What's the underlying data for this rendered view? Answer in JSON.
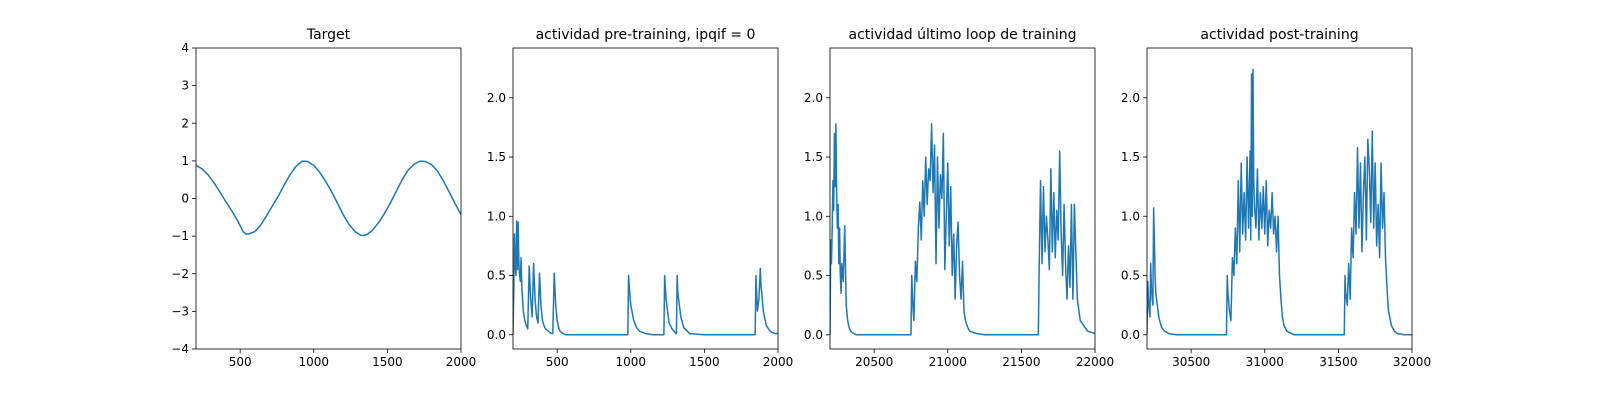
{
  "figure": {
    "line_color": "#1f77b4"
  },
  "chart_data": [
    {
      "type": "line",
      "title": "Target",
      "xlim": [
        200,
        2000
      ],
      "ylim": [
        -4,
        4
      ],
      "x_ticks": [
        500,
        1000,
        1500,
        2000
      ],
      "x_tick_labels": [
        "500",
        "1000",
        "1500",
        "2000"
      ],
      "y_ticks": [
        -4,
        -3,
        -2,
        -1,
        0,
        1,
        2,
        3,
        4
      ],
      "y_tick_labels": [
        "−4",
        "−3",
        "−2",
        "−1",
        "0",
        "1",
        "2",
        "3",
        "4"
      ],
      "grid": false,
      "series": [
        {
          "x": [
            200,
            240,
            280,
            320,
            360,
            400,
            440,
            480,
            520,
            540,
            560,
            600,
            640,
            680,
            720,
            760,
            800,
            840,
            880,
            920,
            940,
            960,
            1000,
            1040,
            1080,
            1120,
            1160,
            1200,
            1240,
            1280,
            1320,
            1340,
            1360,
            1400,
            1440,
            1480,
            1520,
            1560,
            1600,
            1640,
            1680,
            1720,
            1740,
            1760,
            1800,
            1840,
            1880,
            1920,
            1960,
            2000
          ],
          "y": [
            0.88,
            0.79,
            0.64,
            0.43,
            0.19,
            -0.07,
            -0.31,
            -0.57,
            -0.88,
            -0.95,
            -0.94,
            -0.88,
            -0.7,
            -0.46,
            -0.19,
            0.07,
            0.37,
            0.64,
            0.86,
            0.99,
            0.99,
            0.98,
            0.88,
            0.7,
            0.46,
            0.19,
            -0.12,
            -0.43,
            -0.69,
            -0.88,
            -0.98,
            -0.98,
            -0.96,
            -0.84,
            -0.64,
            -0.4,
            -0.12,
            0.19,
            0.5,
            0.75,
            0.91,
            0.99,
            0.99,
            0.98,
            0.9,
            0.73,
            0.47,
            0.17,
            -0.14,
            -0.43
          ]
        }
      ]
    },
    {
      "type": "line",
      "title": "actividad pre-training, ipqif = 0",
      "xlim": [
        200,
        2000
      ],
      "ylim": [
        -0.12,
        2.42
      ],
      "x_ticks": [
        500,
        1000,
        1500,
        2000
      ],
      "x_tick_labels": [
        "500",
        "1000",
        "1500",
        "2000"
      ],
      "y_ticks": [
        0,
        0.5,
        1.0,
        1.5,
        2.0
      ],
      "y_tick_labels": [
        "0.0",
        "0.5",
        "1.0",
        "1.5",
        "2.0"
      ],
      "grid": false,
      "series": [
        {
          "x": [
            200,
            205,
            210,
            215,
            220,
            225,
            230,
            235,
            240,
            245,
            250,
            255,
            260,
            265,
            270,
            280,
            290,
            300,
            310,
            320,
            330,
            340,
            350,
            360,
            370,
            380,
            390,
            400,
            410,
            420,
            430,
            440,
            450,
            460,
            470,
            480,
            490,
            500,
            510,
            520,
            540,
            560,
            600,
            700,
            800,
            900,
            980,
            985,
            990,
            1000,
            1020,
            1040,
            1060,
            1100,
            1150,
            1200,
            1225,
            1230,
            1240,
            1260,
            1280,
            1300,
            1310,
            1315,
            1320,
            1340,
            1360,
            1400,
            1500,
            1600,
            1700,
            1800,
            1845,
            1850,
            1860,
            1870,
            1880,
            1885,
            1890,
            1900,
            1920,
            1940,
            1960,
            1980,
            2000
          ],
          "y": [
            0.0,
            0.35,
            0.85,
            0.6,
            0.5,
            0.96,
            0.55,
            0.95,
            0.6,
            0.5,
            0.45,
            0.65,
            0.4,
            0.3,
            0.2,
            0.12,
            0.08,
            0.05,
            0.58,
            0.3,
            0.15,
            0.6,
            0.3,
            0.15,
            0.1,
            0.52,
            0.25,
            0.12,
            0.08,
            0.05,
            0.04,
            0.03,
            0.02,
            0.01,
            0.01,
            0.52,
            0.25,
            0.12,
            0.06,
            0.03,
            0.01,
            0.0,
            0.0,
            0.0,
            0.0,
            0.0,
            0.0,
            0.5,
            0.4,
            0.25,
            0.12,
            0.06,
            0.03,
            0.01,
            0.0,
            0.0,
            0.0,
            0.5,
            0.3,
            0.1,
            0.05,
            0.02,
            0.01,
            0.5,
            0.35,
            0.15,
            0.06,
            0.01,
            0.0,
            0.0,
            0.0,
            0.0,
            0.0,
            0.5,
            0.2,
            0.3,
            0.56,
            0.4,
            0.35,
            0.2,
            0.08,
            0.04,
            0.02,
            0.01,
            0.01
          ]
        }
      ]
    },
    {
      "type": "line",
      "title": "actividad último loop de training",
      "xlim": [
        20200,
        22000
      ],
      "ylim": [
        -0.12,
        2.42
      ],
      "x_ticks": [
        20500,
        21000,
        21500,
        22000
      ],
      "x_tick_labels": [
        "20500",
        "21000",
        "21500",
        "22000"
      ],
      "y_ticks": [
        0,
        0.5,
        1.0,
        1.5,
        2.0
      ],
      "y_tick_labels": [
        "0.0",
        "0.5",
        "1.0",
        "1.5",
        "2.0"
      ],
      "grid": false,
      "series": [
        {
          "x": [
            20200,
            20205,
            20210,
            20215,
            20220,
            20225,
            20230,
            20235,
            20240,
            20245,
            20250,
            20255,
            20260,
            20265,
            20270,
            20275,
            20280,
            20290,
            20300,
            20310,
            20320,
            20330,
            20340,
            20360,
            20380,
            20400,
            20450,
            20500,
            20600,
            20700,
            20750,
            20755,
            20760,
            20765,
            20770,
            20780,
            20790,
            20800,
            20810,
            20820,
            20830,
            20840,
            20850,
            20860,
            20870,
            20880,
            20890,
            20900,
            20910,
            20920,
            20930,
            20940,
            20950,
            20960,
            20970,
            20980,
            20990,
            21000,
            21010,
            21020,
            21030,
            21040,
            21050,
            21060,
            21070,
            21080,
            21090,
            21100,
            21110,
            21120,
            21130,
            21140,
            21150,
            21170,
            21200,
            21250,
            21300,
            21400,
            21500,
            21600,
            21615,
            21620,
            21625,
            21630,
            21640,
            21650,
            21660,
            21670,
            21680,
            21690,
            21700,
            21710,
            21720,
            21730,
            21740,
            21750,
            21760,
            21770,
            21780,
            21790,
            21800,
            21810,
            21820,
            21830,
            21840,
            21850,
            21860,
            21880,
            21900,
            21950,
            22000
          ],
          "y": [
            0.0,
            0.8,
            0.6,
            0.9,
            1.3,
            1.05,
            1.7,
            1.25,
            1.78,
            1.2,
            0.9,
            1.1,
            0.6,
            0.9,
            0.5,
            0.35,
            0.6,
            0.45,
            0.92,
            0.25,
            0.12,
            0.06,
            0.03,
            0.01,
            0.0,
            0.0,
            0.0,
            0.0,
            0.0,
            0.0,
            0.0,
            0.5,
            0.35,
            0.2,
            0.12,
            0.62,
            0.45,
            0.9,
            1.12,
            0.8,
            1.3,
            1.0,
            1.5,
            1.1,
            1.4,
            1.3,
            1.78,
            1.2,
            1.6,
            0.6,
            1.5,
            0.9,
            1.35,
            1.15,
            1.7,
            0.55,
            1.0,
            1.45,
            0.75,
            1.25,
            0.5,
            0.85,
            0.3,
            0.75,
            0.95,
            0.5,
            0.3,
            0.62,
            0.2,
            0.12,
            0.08,
            0.05,
            0.03,
            0.02,
            0.01,
            0.0,
            0.0,
            0.0,
            0.0,
            0.0,
            0.0,
            0.5,
            0.9,
            1.3,
            0.6,
            1.25,
            0.7,
            1.0,
            0.8,
            0.55,
            1.4,
            0.7,
            1.2,
            0.65,
            1.05,
            0.8,
            1.55,
            0.85,
            0.5,
            1.1,
            0.6,
            0.3,
            0.75,
            0.4,
            1.1,
            0.3,
            1.1,
            0.3,
            0.12,
            0.03,
            0.01
          ]
        }
      ]
    },
    {
      "type": "line",
      "title": "actividad post-training",
      "xlim": [
        30200,
        32000
      ],
      "ylim": [
        -0.12,
        2.42
      ],
      "x_ticks": [
        30500,
        31000,
        31500,
        32000
      ],
      "x_tick_labels": [
        "30500",
        "31000",
        "31500",
        "32000"
      ],
      "y_ticks": [
        0,
        0.5,
        1.0,
        1.5,
        2.0
      ],
      "y_tick_labels": [
        "0.0",
        "0.5",
        "1.0",
        "1.5",
        "2.0"
      ],
      "grid": false,
      "series": [
        {
          "x": [
            30200,
            30205,
            30210,
            30215,
            30220,
            30225,
            30230,
            30235,
            30240,
            30245,
            30250,
            30255,
            30260,
            30270,
            30280,
            30290,
            30300,
            30320,
            30350,
            30400,
            30500,
            30600,
            30700,
            30740,
            30745,
            30750,
            30760,
            30770,
            30780,
            30790,
            30800,
            30810,
            30820,
            30830,
            30840,
            30850,
            30860,
            30870,
            30880,
            30890,
            30900,
            30905,
            30910,
            30915,
            30920,
            30925,
            30930,
            30940,
            30950,
            30960,
            30970,
            30980,
            30990,
            31000,
            31010,
            31020,
            31030,
            31040,
            31050,
            31060,
            31070,
            31080,
            31090,
            31100,
            31110,
            31120,
            31130,
            31150,
            31200,
            31300,
            31400,
            31500,
            31540,
            31545,
            31550,
            31560,
            31570,
            31580,
            31590,
            31600,
            31610,
            31620,
            31630,
            31640,
            31650,
            31660,
            31670,
            31680,
            31690,
            31700,
            31710,
            31720,
            31730,
            31740,
            31750,
            31760,
            31770,
            31780,
            31790,
            31800,
            31810,
            31820,
            31830,
            31840,
            31860,
            31880,
            31900,
            31950,
            32000
          ],
          "y": [
            0.0,
            0.45,
            0.3,
            0.2,
            0.15,
            0.6,
            0.4,
            0.3,
            0.25,
            1.07,
            0.8,
            0.5,
            0.35,
            0.25,
            0.15,
            0.1,
            0.06,
            0.03,
            0.01,
            0.0,
            0.0,
            0.0,
            0.0,
            0.0,
            0.5,
            0.35,
            0.2,
            0.12,
            0.65,
            0.5,
            0.9,
            0.6,
            1.3,
            0.7,
            1.45,
            0.85,
            1.2,
            0.8,
            1.5,
            0.9,
            1.55,
            0.8,
            2.2,
            1.0,
            2.24,
            1.3,
            1.1,
            0.9,
            1.4,
            0.8,
            1.2,
            0.9,
            1.25,
            0.85,
            1.3,
            0.75,
            1.05,
            0.9,
            1.2,
            0.85,
            1.0,
            0.7,
            1.0,
            0.5,
            0.3,
            0.15,
            0.08,
            0.03,
            0.0,
            0.0,
            0.0,
            0.0,
            0.0,
            0.5,
            0.35,
            0.25,
            0.6,
            0.3,
            0.9,
            0.65,
            1.2,
            0.85,
            1.58,
            0.9,
            1.45,
            0.7,
            1.2,
            1.5,
            0.8,
            1.65,
            1.4,
            0.95,
            1.72,
            0.9,
            1.45,
            0.75,
            1.1,
            0.65,
            1.45,
            0.9,
            1.2,
            0.65,
            0.4,
            0.2,
            0.08,
            0.03,
            0.01,
            0.0,
            0.0
          ]
        }
      ]
    }
  ]
}
